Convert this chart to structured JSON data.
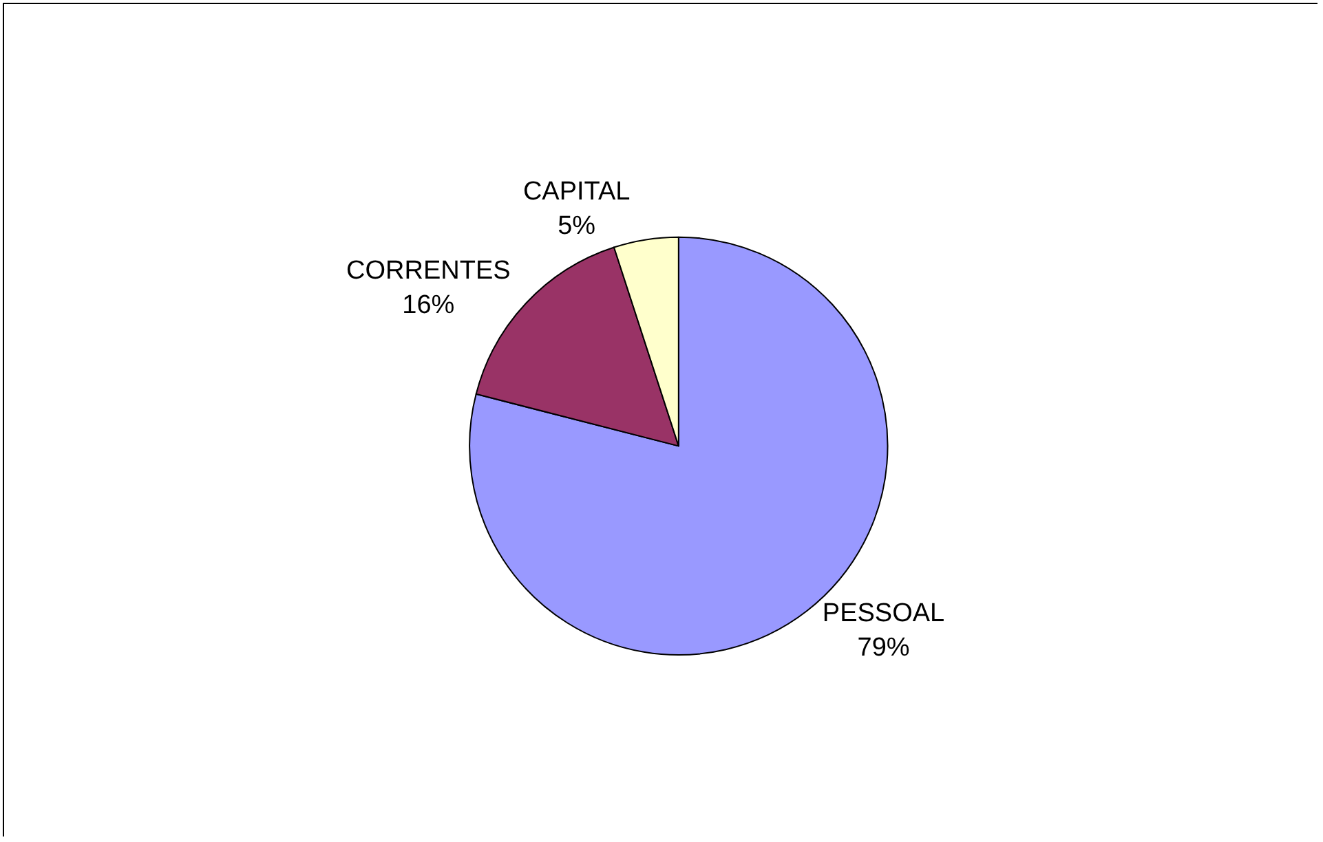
{
  "chart_data": {
    "type": "pie",
    "categories": [
      "PESSOAL",
      "CORRENTES",
      "CAPITAL"
    ],
    "values": [
      79,
      16,
      5
    ],
    "colors": [
      "#9999ff",
      "#993366",
      "#ffffcc"
    ],
    "value_labels": [
      "79%",
      "16%",
      "5%"
    ],
    "legend": false
  }
}
